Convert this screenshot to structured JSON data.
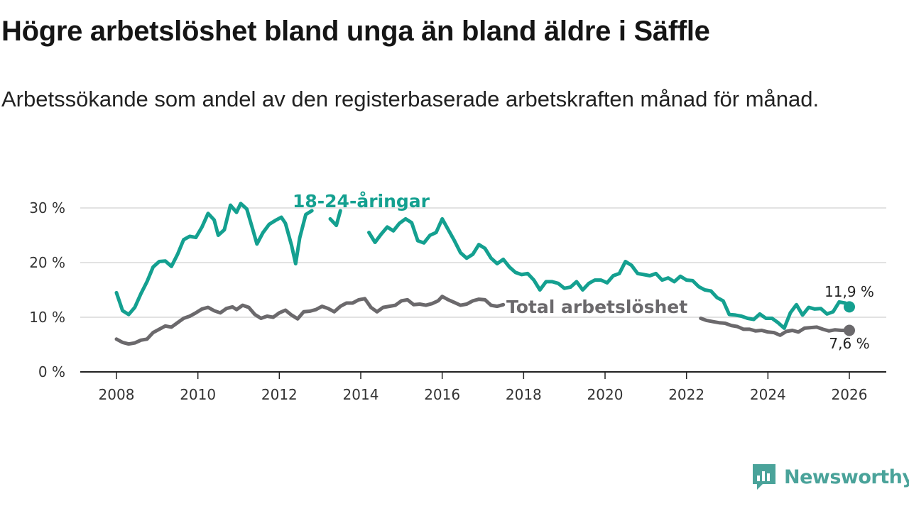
{
  "title": "Högre arbetslöshet bland unga än bland äldre i Säffle",
  "subtitle": "Arbetssökande som andel av den registerbaserade arbetskraften månad för månad.",
  "brand": {
    "name": "Newsworthy",
    "icon": "newsworthy-logo-icon",
    "color": "#4aa39a"
  },
  "colors": {
    "youth": "#14a090",
    "total": "#6b696c",
    "grid": "#d9d9d9",
    "axis": "#222222"
  },
  "chart_data": {
    "type": "line",
    "x_unit": "year",
    "xlim": [
      2007.2,
      2026.95
    ],
    "ylim": [
      0,
      32
    ],
    "x_ticks": [
      2008,
      2010,
      2012,
      2014,
      2016,
      2018,
      2020,
      2022,
      2024,
      2026
    ],
    "x_tick_labels": [
      "2008",
      "2010",
      "2012",
      "2014",
      "2016",
      "2018",
      "2020",
      "2022",
      "2024",
      "2026"
    ],
    "y_ticks": [
      0,
      10,
      20,
      30
    ],
    "y_tick_labels": [
      "0 %",
      "10 %",
      "20 %",
      "30 %"
    ],
    "grid": "horizontal",
    "series": [
      {
        "name": "18-24-åringar",
        "label": "18-24-åringar",
        "color": "#14a090",
        "end_label": "11,9 %",
        "points": [
          [
            2008.0,
            14.5
          ],
          [
            2008.15,
            11.2
          ],
          [
            2008.3,
            10.5
          ],
          [
            2008.45,
            11.8
          ],
          [
            2008.6,
            14.3
          ],
          [
            2008.75,
            16.5
          ],
          [
            2008.9,
            19.2
          ],
          [
            2009.05,
            20.2
          ],
          [
            2009.2,
            20.3
          ],
          [
            2009.35,
            19.3
          ],
          [
            2009.5,
            21.5
          ],
          [
            2009.65,
            24.2
          ],
          [
            2009.8,
            24.8
          ],
          [
            2009.95,
            24.6
          ],
          [
            2010.1,
            26.5
          ],
          [
            2010.25,
            29.0
          ],
          [
            2010.4,
            27.8
          ],
          [
            2010.5,
            25.0
          ],
          [
            2010.65,
            26.0
          ],
          [
            2010.8,
            30.5
          ],
          [
            2010.95,
            29.2
          ],
          [
            2011.05,
            30.8
          ],
          [
            2011.2,
            29.8
          ],
          [
            2011.35,
            26.0
          ],
          [
            2011.45,
            23.4
          ],
          [
            2011.6,
            25.5
          ],
          [
            2011.75,
            27.0
          ],
          [
            2011.9,
            27.7
          ],
          [
            2012.05,
            28.3
          ],
          [
            2012.15,
            27.2
          ],
          [
            2012.3,
            23.2
          ],
          [
            2012.4,
            19.8
          ],
          [
            2012.5,
            24.5
          ],
          [
            2012.65,
            28.8
          ],
          [
            2012.8,
            29.5
          ]
        ],
        "points_b": [
          [
            2013.25,
            28.0
          ],
          [
            2013.4,
            26.8
          ],
          [
            2013.5,
            29.5
          ]
        ],
        "points_c": [
          [
            2014.2,
            25.5
          ],
          [
            2014.35,
            23.7
          ],
          [
            2014.5,
            25.2
          ],
          [
            2014.65,
            26.5
          ],
          [
            2014.8,
            25.8
          ],
          [
            2014.95,
            27.2
          ],
          [
            2015.1,
            28.0
          ],
          [
            2015.25,
            27.3
          ],
          [
            2015.4,
            24.0
          ],
          [
            2015.55,
            23.6
          ],
          [
            2015.7,
            25.0
          ],
          [
            2015.85,
            25.5
          ],
          [
            2016.0,
            28.0
          ],
          [
            2016.15,
            26.0
          ],
          [
            2016.3,
            24.0
          ],
          [
            2016.45,
            21.8
          ],
          [
            2016.6,
            20.8
          ],
          [
            2016.75,
            21.5
          ],
          [
            2016.9,
            23.3
          ],
          [
            2017.05,
            22.6
          ],
          [
            2017.2,
            20.8
          ],
          [
            2017.35,
            19.8
          ],
          [
            2017.5,
            20.6
          ],
          [
            2017.65,
            19.2
          ],
          [
            2017.8,
            18.2
          ],
          [
            2017.95,
            17.8
          ],
          [
            2018.1,
            18.0
          ],
          [
            2018.25,
            16.8
          ],
          [
            2018.4,
            15.0
          ],
          [
            2018.55,
            16.5
          ],
          [
            2018.7,
            16.5
          ],
          [
            2018.85,
            16.2
          ],
          [
            2019.0,
            15.3
          ],
          [
            2019.15,
            15.5
          ],
          [
            2019.3,
            16.5
          ],
          [
            2019.45,
            15.0
          ],
          [
            2019.6,
            16.2
          ],
          [
            2019.75,
            16.8
          ],
          [
            2019.9,
            16.8
          ],
          [
            2020.05,
            16.3
          ],
          [
            2020.2,
            17.6
          ],
          [
            2020.35,
            18.0
          ],
          [
            2020.5,
            20.2
          ],
          [
            2020.65,
            19.5
          ],
          [
            2020.8,
            18.0
          ],
          [
            2020.95,
            17.8
          ],
          [
            2021.1,
            17.6
          ],
          [
            2021.25,
            18.0
          ],
          [
            2021.4,
            16.8
          ],
          [
            2021.55,
            17.2
          ],
          [
            2021.7,
            16.5
          ],
          [
            2021.85,
            17.5
          ],
          [
            2022.0,
            16.8
          ],
          [
            2022.15,
            16.7
          ],
          [
            2022.3,
            15.6
          ],
          [
            2022.45,
            15.0
          ],
          [
            2022.6,
            14.8
          ],
          [
            2022.75,
            13.6
          ],
          [
            2022.9,
            13.0
          ],
          [
            2023.05,
            10.5
          ],
          [
            2023.2,
            10.4
          ],
          [
            2023.35,
            10.2
          ],
          [
            2023.5,
            9.8
          ],
          [
            2023.65,
            9.6
          ],
          [
            2023.8,
            10.6
          ],
          [
            2023.95,
            9.8
          ],
          [
            2024.1,
            9.8
          ],
          [
            2024.25,
            9.0
          ],
          [
            2024.4,
            8.0
          ],
          [
            2024.55,
            10.8
          ],
          [
            2024.7,
            12.3
          ],
          [
            2024.85,
            10.4
          ],
          [
            2025.0,
            11.8
          ],
          [
            2025.15,
            11.5
          ],
          [
            2025.3,
            11.6
          ],
          [
            2025.45,
            10.6
          ],
          [
            2025.6,
            11.0
          ],
          [
            2025.75,
            12.8
          ],
          [
            2025.9,
            12.6
          ],
          [
            2026.0,
            11.9
          ]
        ]
      },
      {
        "name": "Total arbetslöshet",
        "label": "Total arbetslöshet",
        "color": "#6b696c",
        "end_label": "7,6 %",
        "points": [
          [
            2008.0,
            6.0
          ],
          [
            2008.15,
            5.4
          ],
          [
            2008.3,
            5.1
          ],
          [
            2008.45,
            5.3
          ],
          [
            2008.6,
            5.8
          ],
          [
            2008.75,
            6.0
          ],
          [
            2008.9,
            7.2
          ],
          [
            2009.05,
            7.8
          ],
          [
            2009.2,
            8.4
          ],
          [
            2009.35,
            8.2
          ],
          [
            2009.5,
            9.0
          ],
          [
            2009.65,
            9.8
          ],
          [
            2009.8,
            10.2
          ],
          [
            2009.95,
            10.8
          ],
          [
            2010.1,
            11.5
          ],
          [
            2010.25,
            11.8
          ],
          [
            2010.4,
            11.2
          ],
          [
            2010.55,
            10.8
          ],
          [
            2010.7,
            11.6
          ],
          [
            2010.85,
            11.9
          ],
          [
            2010.95,
            11.4
          ],
          [
            2011.1,
            12.2
          ],
          [
            2011.25,
            11.8
          ],
          [
            2011.4,
            10.5
          ],
          [
            2011.55,
            9.8
          ],
          [
            2011.7,
            10.2
          ],
          [
            2011.85,
            10.0
          ],
          [
            2012.0,
            10.8
          ],
          [
            2012.15,
            11.3
          ],
          [
            2012.3,
            10.4
          ],
          [
            2012.45,
            9.7
          ],
          [
            2012.6,
            11.0
          ],
          [
            2012.75,
            11.1
          ],
          [
            2012.9,
            11.4
          ],
          [
            2013.05,
            12.0
          ],
          [
            2013.2,
            11.6
          ],
          [
            2013.35,
            11.0
          ],
          [
            2013.5,
            12.0
          ],
          [
            2013.65,
            12.6
          ],
          [
            2013.8,
            12.6
          ],
          [
            2013.95,
            13.2
          ],
          [
            2014.1,
            13.4
          ],
          [
            2014.25,
            11.8
          ],
          [
            2014.4,
            11.0
          ],
          [
            2014.55,
            11.8
          ],
          [
            2014.7,
            12.0
          ],
          [
            2014.85,
            12.2
          ],
          [
            2015.0,
            13.0
          ],
          [
            2015.15,
            13.2
          ],
          [
            2015.3,
            12.3
          ],
          [
            2015.45,
            12.4
          ],
          [
            2015.6,
            12.2
          ],
          [
            2015.75,
            12.5
          ],
          [
            2015.9,
            13.0
          ],
          [
            2016.0,
            13.8
          ],
          [
            2016.15,
            13.2
          ],
          [
            2016.3,
            12.7
          ],
          [
            2016.45,
            12.2
          ],
          [
            2016.6,
            12.4
          ],
          [
            2016.75,
            13.0
          ],
          [
            2016.9,
            13.3
          ],
          [
            2017.05,
            13.2
          ],
          [
            2017.2,
            12.2
          ],
          [
            2017.35,
            12.0
          ],
          [
            2017.5,
            12.3
          ]
        ],
        "points_b": [
          [
            2022.35,
            9.8
          ],
          [
            2022.5,
            9.4
          ],
          [
            2022.65,
            9.2
          ],
          [
            2022.8,
            9.0
          ],
          [
            2022.95,
            8.9
          ],
          [
            2023.1,
            8.5
          ],
          [
            2023.25,
            8.3
          ],
          [
            2023.4,
            7.8
          ],
          [
            2023.55,
            7.8
          ],
          [
            2023.7,
            7.5
          ],
          [
            2023.85,
            7.6
          ],
          [
            2024.0,
            7.3
          ],
          [
            2024.15,
            7.2
          ],
          [
            2024.3,
            6.7
          ],
          [
            2024.45,
            7.4
          ],
          [
            2024.6,
            7.6
          ],
          [
            2024.75,
            7.3
          ],
          [
            2024.9,
            8.0
          ],
          [
            2025.05,
            8.1
          ],
          [
            2025.2,
            8.2
          ],
          [
            2025.35,
            7.8
          ],
          [
            2025.5,
            7.5
          ],
          [
            2025.65,
            7.7
          ],
          [
            2025.8,
            7.6
          ],
          [
            2026.0,
            7.6
          ]
        ]
      }
    ]
  }
}
